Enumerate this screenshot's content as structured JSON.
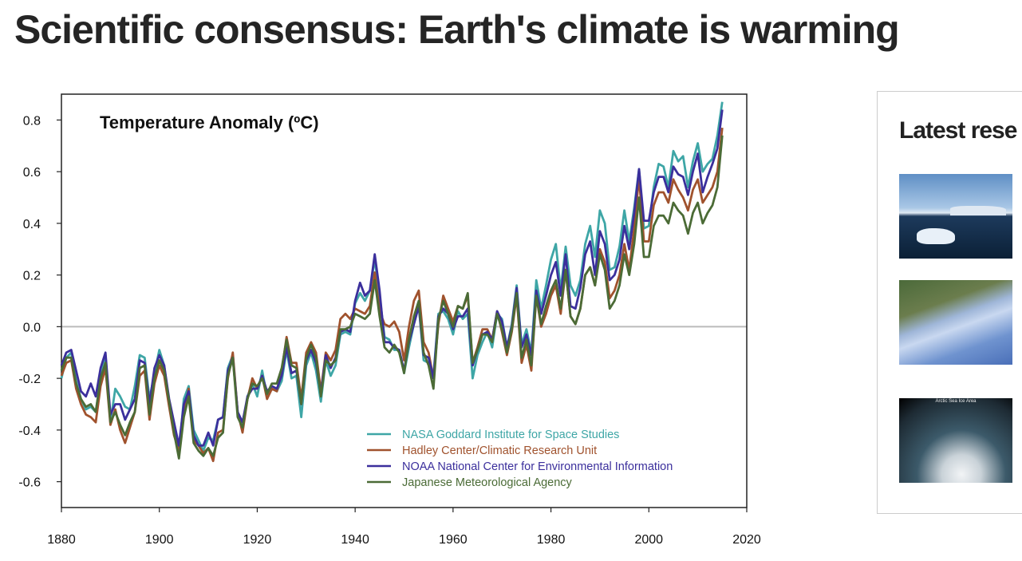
{
  "page": {
    "title": "Scientific consensus: Earth's climate is warming"
  },
  "sidebar": {
    "heading": "Latest rese",
    "items": [
      {
        "image": "greenland-icebergs-photo"
      },
      {
        "image": "ocean-currents-visualization"
      },
      {
        "image": "arctic-sea-ice-chart",
        "caption": "Arctic Sea Ice Area"
      }
    ]
  },
  "chart_data": {
    "type": "line",
    "title": "Temperature Anomaly (ºC)",
    "xlabel": "",
    "ylabel": "",
    "xlim": [
      1880,
      2020
    ],
    "ylim": [
      -0.7,
      0.9
    ],
    "x_ticks": [
      1880,
      1900,
      1920,
      1940,
      1960,
      1980,
      2000,
      2020
    ],
    "y_ticks": [
      -0.6,
      -0.4,
      -0.2,
      0.0,
      0.2,
      0.4,
      0.6,
      0.8
    ],
    "y_tick_labels": [
      "-0.6",
      "-0.4",
      "-0.2",
      "0.0",
      "0.2",
      "0.4",
      "0.6",
      "0.8"
    ],
    "zero_line": true,
    "grid": false,
    "legend_position": "bottom-right",
    "x_start": 1880,
    "x_end": 2015,
    "series": [
      {
        "name": "NASA Goddard Institute for Space Studies",
        "color": "#3ea6a6",
        "values": [
          -0.2,
          -0.12,
          -0.1,
          -0.21,
          -0.28,
          -0.32,
          -0.31,
          -0.33,
          -0.2,
          -0.11,
          -0.37,
          -0.24,
          -0.27,
          -0.31,
          -0.32,
          -0.23,
          -0.11,
          -0.12,
          -0.28,
          -0.18,
          -0.09,
          -0.15,
          -0.3,
          -0.39,
          -0.49,
          -0.28,
          -0.23,
          -0.4,
          -0.44,
          -0.48,
          -0.43,
          -0.44,
          -0.36,
          -0.35,
          -0.16,
          -0.11,
          -0.33,
          -0.4,
          -0.27,
          -0.22,
          -0.27,
          -0.17,
          -0.27,
          -0.24,
          -0.25,
          -0.21,
          -0.09,
          -0.2,
          -0.19,
          -0.35,
          -0.15,
          -0.1,
          -0.17,
          -0.29,
          -0.13,
          -0.19,
          -0.15,
          -0.03,
          -0.02,
          -0.03,
          0.09,
          0.13,
          0.1,
          0.14,
          0.26,
          0.12,
          -0.04,
          -0.05,
          -0.09,
          -0.09,
          -0.18,
          -0.08,
          0.01,
          0.08,
          -0.13,
          -0.14,
          -0.19,
          0.05,
          0.06,
          0.03,
          -0.03,
          0.06,
          0.03,
          0.05,
          -0.2,
          -0.11,
          -0.06,
          -0.02,
          -0.08,
          0.05,
          0.03,
          -0.08,
          0.01,
          0.16,
          -0.07,
          -0.01,
          -0.1,
          0.18,
          0.07,
          0.16,
          0.26,
          0.32,
          0.14,
          0.31,
          0.16,
          0.12,
          0.18,
          0.32,
          0.39,
          0.27,
          0.45,
          0.4,
          0.22,
          0.23,
          0.31,
          0.45,
          0.33,
          0.46,
          0.61,
          0.38,
          0.39,
          0.54,
          0.63,
          0.62,
          0.54,
          0.68,
          0.64,
          0.66,
          0.54,
          0.64,
          0.71,
          0.6,
          0.63,
          0.65,
          0.74,
          0.87
        ]
      },
      {
        "name": "Hadley Center/Climatic Research Unit",
        "color": "#a0522d",
        "values": [
          -0.19,
          -0.14,
          -0.13,
          -0.24,
          -0.3,
          -0.34,
          -0.35,
          -0.37,
          -0.23,
          -0.16,
          -0.38,
          -0.32,
          -0.4,
          -0.45,
          -0.39,
          -0.33,
          -0.19,
          -0.17,
          -0.36,
          -0.22,
          -0.15,
          -0.19,
          -0.31,
          -0.42,
          -0.48,
          -0.33,
          -0.24,
          -0.44,
          -0.46,
          -0.49,
          -0.47,
          -0.52,
          -0.41,
          -0.4,
          -0.2,
          -0.1,
          -0.33,
          -0.41,
          -0.28,
          -0.2,
          -0.24,
          -0.19,
          -0.28,
          -0.24,
          -0.25,
          -0.17,
          -0.04,
          -0.14,
          -0.14,
          -0.28,
          -0.1,
          -0.06,
          -0.1,
          -0.25,
          -0.1,
          -0.13,
          -0.09,
          0.03,
          0.05,
          0.03,
          0.07,
          0.06,
          0.05,
          0.08,
          0.21,
          0.06,
          0.01,
          0.0,
          0.02,
          -0.02,
          -0.13,
          0.0,
          0.1,
          0.14,
          -0.06,
          -0.1,
          -0.2,
          0.01,
          0.12,
          0.07,
          0.02,
          0.08,
          0.07,
          0.12,
          -0.14,
          -0.08,
          -0.01,
          -0.01,
          -0.05,
          0.06,
          -0.02,
          -0.11,
          -0.02,
          0.12,
          -0.14,
          -0.07,
          -0.17,
          0.12,
          0.0,
          0.05,
          0.12,
          0.16,
          0.05,
          0.22,
          0.04,
          0.01,
          0.07,
          0.2,
          0.23,
          0.16,
          0.3,
          0.25,
          0.11,
          0.14,
          0.2,
          0.32,
          0.22,
          0.38,
          0.58,
          0.33,
          0.33,
          0.47,
          0.52,
          0.52,
          0.48,
          0.57,
          0.53,
          0.5,
          0.45,
          0.53,
          0.57,
          0.48,
          0.51,
          0.54,
          0.6,
          0.77
        ]
      },
      {
        "name": "NOAA National Center for Environmental Information",
        "color": "#3b2f9c",
        "values": [
          -0.15,
          -0.1,
          -0.09,
          -0.17,
          -0.25,
          -0.27,
          -0.22,
          -0.27,
          -0.16,
          -0.1,
          -0.34,
          -0.3,
          -0.3,
          -0.36,
          -0.32,
          -0.28,
          -0.13,
          -0.14,
          -0.3,
          -0.16,
          -0.11,
          -0.15,
          -0.28,
          -0.37,
          -0.46,
          -0.3,
          -0.25,
          -0.42,
          -0.46,
          -0.46,
          -0.41,
          -0.46,
          -0.36,
          -0.35,
          -0.17,
          -0.12,
          -0.33,
          -0.37,
          -0.27,
          -0.24,
          -0.24,
          -0.19,
          -0.25,
          -0.23,
          -0.24,
          -0.19,
          -0.08,
          -0.18,
          -0.17,
          -0.3,
          -0.13,
          -0.09,
          -0.14,
          -0.26,
          -0.11,
          -0.16,
          -0.12,
          -0.02,
          -0.01,
          -0.02,
          0.1,
          0.17,
          0.12,
          0.14,
          0.28,
          0.14,
          -0.06,
          -0.06,
          -0.08,
          -0.09,
          -0.17,
          -0.06,
          0.01,
          0.08,
          -0.11,
          -0.12,
          -0.2,
          0.04,
          0.07,
          0.05,
          -0.01,
          0.04,
          0.04,
          0.07,
          -0.15,
          -0.09,
          -0.03,
          -0.02,
          -0.05,
          0.06,
          0.02,
          -0.08,
          0.0,
          0.15,
          -0.08,
          -0.03,
          -0.11,
          0.14,
          0.05,
          0.12,
          0.2,
          0.25,
          0.12,
          0.28,
          0.08,
          0.07,
          0.15,
          0.28,
          0.33,
          0.2,
          0.37,
          0.32,
          0.18,
          0.2,
          0.26,
          0.39,
          0.3,
          0.44,
          0.61,
          0.41,
          0.41,
          0.52,
          0.58,
          0.58,
          0.52,
          0.62,
          0.59,
          0.58,
          0.51,
          0.6,
          0.67,
          0.52,
          0.58,
          0.63,
          0.69,
          0.84
        ]
      },
      {
        "name": "Japanese Meteorological Agency",
        "color": "#4b6b36",
        "values": [
          -0.17,
          -0.12,
          -0.12,
          -0.22,
          -0.28,
          -0.31,
          -0.3,
          -0.33,
          -0.2,
          -0.14,
          -0.37,
          -0.33,
          -0.38,
          -0.42,
          -0.37,
          -0.33,
          -0.16,
          -0.15,
          -0.34,
          -0.2,
          -0.13,
          -0.17,
          -0.29,
          -0.41,
          -0.51,
          -0.35,
          -0.27,
          -0.45,
          -0.48,
          -0.5,
          -0.47,
          -0.5,
          -0.43,
          -0.41,
          -0.19,
          -0.12,
          -0.35,
          -0.39,
          -0.28,
          -0.22,
          -0.23,
          -0.2,
          -0.26,
          -0.22,
          -0.22,
          -0.16,
          -0.05,
          -0.15,
          -0.16,
          -0.3,
          -0.12,
          -0.07,
          -0.12,
          -0.27,
          -0.13,
          -0.15,
          -0.13,
          -0.01,
          -0.01,
          0.0,
          0.05,
          0.04,
          0.03,
          0.05,
          0.18,
          0.04,
          -0.08,
          -0.1,
          -0.07,
          -0.1,
          -0.18,
          -0.05,
          0.04,
          0.1,
          -0.1,
          -0.15,
          -0.24,
          0.03,
          0.1,
          0.05,
          0.0,
          0.08,
          0.07,
          0.13,
          -0.14,
          -0.09,
          -0.03,
          -0.03,
          -0.06,
          0.05,
          -0.01,
          -0.1,
          -0.01,
          0.13,
          -0.12,
          -0.05,
          -0.15,
          0.12,
          0.01,
          0.08,
          0.14,
          0.18,
          0.07,
          0.22,
          0.04,
          0.01,
          0.07,
          0.2,
          0.23,
          0.16,
          0.28,
          0.22,
          0.07,
          0.1,
          0.16,
          0.28,
          0.2,
          0.32,
          0.5,
          0.27,
          0.27,
          0.39,
          0.43,
          0.43,
          0.4,
          0.48,
          0.45,
          0.43,
          0.36,
          0.44,
          0.48,
          0.4,
          0.44,
          0.47,
          0.54,
          0.74
        ]
      }
    ]
  }
}
